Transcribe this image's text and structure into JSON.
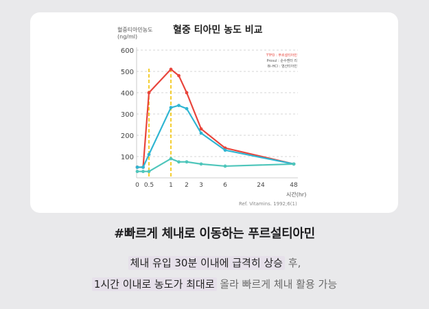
{
  "chart_data": {
    "type": "line",
    "title": "혈중 티아민 농도 비교",
    "ylabel_lines": [
      "혈중티아민농도",
      "(ng/ml)"
    ],
    "xlabel": "시간(hr)",
    "x_ticks": [
      "0",
      "0.5",
      "1",
      "2",
      "3",
      "6",
      "24",
      "48"
    ],
    "y_ticks": [
      "100",
      "200",
      "300",
      "400",
      "500",
      "600"
    ],
    "ylim": [
      0,
      600
    ],
    "grid": "horizontal-dashed",
    "source": "Ref. Vitamins. 1992;6(1)",
    "legend": {
      "placement": "top-right",
      "entries": [
        "TTFD : 푸르설티아민",
        "Prosul : 순수쎈터 리",
        "Bi-HCl : 염산티아민"
      ]
    },
    "series": [
      {
        "color": "#e8453c",
        "values": [
          50,
          50,
          400,
          510,
          480,
          400,
          230,
          140,
          65
        ]
      },
      {
        "color": "#2fb5d2",
        "values": [
          50,
          50,
          110,
          330,
          340,
          325,
          210,
          130,
          65
        ]
      },
      {
        "color": "#4fc6bb",
        "values": [
          30,
          30,
          30,
          90,
          75,
          75,
          65,
          55,
          65
        ]
      }
    ],
    "series_x": [
      0,
      0.25,
      0.5,
      1,
      1.5,
      2,
      3,
      6,
      48
    ],
    "reference_lines": [
      0.5,
      1
    ],
    "reference_color": "#f2c200"
  },
  "headline": "#빠르게 체내로 이동하는 푸르설티아민",
  "desc": {
    "line1_hl": "체내 유입 30분 이내에 급격히 상승",
    "line1_plain": " 후,",
    "line2_hl": "1시간 이내로 농도가 최대로",
    "line2_plain": " 올라 빠르게 체내 활용 가능"
  }
}
